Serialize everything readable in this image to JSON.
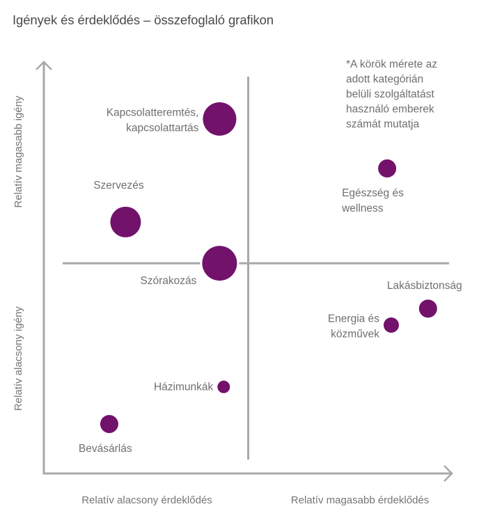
{
  "chart_data": {
    "type": "scatter",
    "subtype": "bubble",
    "title": "Igények és érdeklődés – összefoglaló grafikon",
    "xlabel_low": "Relatív alacsony érdeklődés",
    "xlabel_high": "Relatív magasabb érdeklődés",
    "ylabel_low": "Relatív alacsony igény",
    "ylabel_high": "Relatív magasabb igény",
    "xlim": [
      0,
      10
    ],
    "ylim": [
      0,
      10
    ],
    "x_divider": 5,
    "y_divider": 5.1,
    "grid": false,
    "annotation": [
      "*A körök mérete az",
      "adott kategórián",
      "belüli szolgáltatást",
      "használó emberek",
      "számát mutatja"
    ],
    "color": "#72126B",
    "points": [
      {
        "label": [
          "Kapcsolatteremtés,",
          "kapcsolattartás"
        ],
        "x": 4.3,
        "y": 8.6,
        "size": 24,
        "label_pos": "left"
      },
      {
        "label": [
          "Szervezés"
        ],
        "x": 2.0,
        "y": 6.1,
        "size": 22,
        "label_pos": "above"
      },
      {
        "label": [
          "Szórakozás"
        ],
        "x": 4.3,
        "y": 5.1,
        "size": 25,
        "label_pos": "below-left"
      },
      {
        "label": [
          "Egészség és",
          "wellness"
        ],
        "x": 8.4,
        "y": 7.4,
        "size": 13,
        "label_pos": "below"
      },
      {
        "label": [
          "Lakásbiztonság"
        ],
        "x": 9.4,
        "y": 4.0,
        "size": 13,
        "label_pos": "above"
      },
      {
        "label": [
          "Energia és",
          "közművek"
        ],
        "x": 8.5,
        "y": 3.6,
        "size": 11,
        "label_pos": "left"
      },
      {
        "label": [
          "Házimunkák"
        ],
        "x": 4.4,
        "y": 2.1,
        "size": 9,
        "label_pos": "left"
      },
      {
        "label": [
          "Bevásárlás"
        ],
        "x": 1.6,
        "y": 1.2,
        "size": 13,
        "label_pos": "below"
      }
    ]
  }
}
